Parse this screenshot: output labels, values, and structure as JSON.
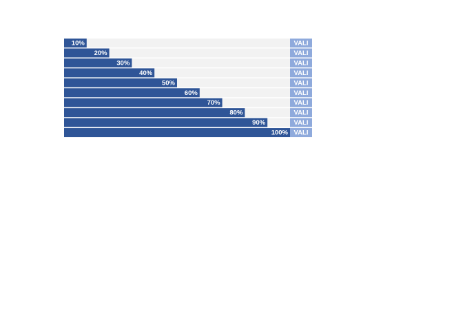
{
  "chart_data": {
    "type": "progress",
    "values": [
      10,
      20,
      30,
      40,
      50,
      60,
      70,
      80,
      90,
      100
    ],
    "value_labels": [
      "10%",
      "20%",
      "30%",
      "40%",
      "50%",
      "60%",
      "70%",
      "80%",
      "90%",
      "100%"
    ],
    "side_labels": [
      "VALI",
      "VALI",
      "VALI",
      "VALI",
      "VALI",
      "VALI",
      "VALI",
      "VALI",
      "VALI",
      "VALI"
    ],
    "xlim": [
      0,
      100
    ],
    "color": "#2f5597",
    "track_color": "#f2f2f2",
    "side_color": "#8faadc"
  }
}
